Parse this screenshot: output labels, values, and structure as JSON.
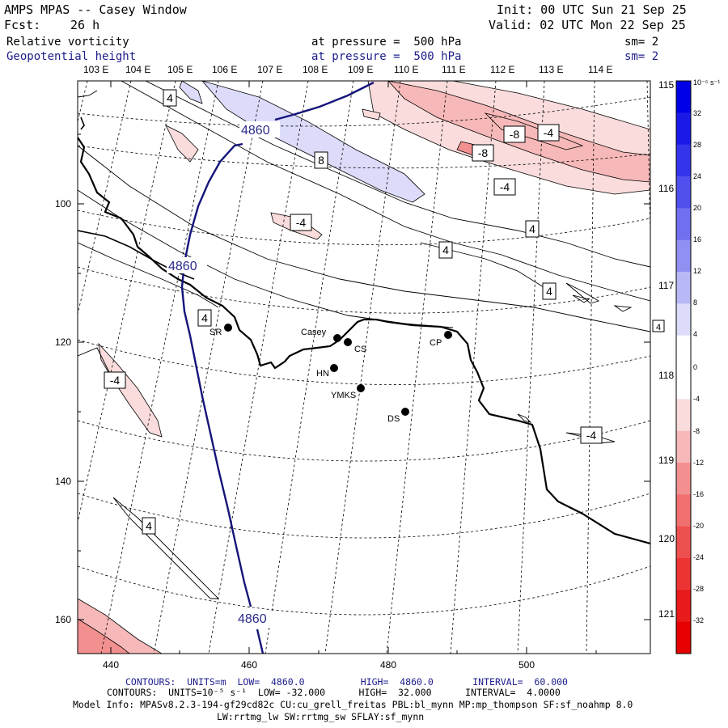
{
  "header": {
    "title": "AMPS MPAS -- Casey Window",
    "init": "Init: 00 UTC Sun 21 Sep 25",
    "fcst_label": "Fcst:",
    "fcst_value": "26 h",
    "valid": "Valid: 02 UTC Mon 22 Sep 25",
    "field1": "Relative vorticity",
    "field1_level": "at pressure =  500 hPa",
    "field1_sm": "sm= 2",
    "field2": "Geopotential height",
    "field2_level": "at pressure =  500 hPa",
    "field2_sm": "sm= 2"
  },
  "axes": {
    "top_lon": [
      "103 E",
      "104 E",
      "105 E",
      "106 E",
      "107 E",
      "108 E",
      "109 E",
      "110 E",
      "111 E",
      "112 E",
      "113 E",
      "114 E"
    ],
    "right_lon": [
      "115 E",
      "116 E",
      "117 E",
      "118 E",
      "119 E",
      "120 E",
      "121 E"
    ],
    "left_ticks": [
      "100",
      "120",
      "140",
      "160"
    ],
    "bottom_ticks": [
      "440",
      "460",
      "480",
      "500"
    ]
  },
  "colorbar": {
    "units": "10⁻⁵ s⁻¹",
    "labels": [
      "32",
      "28",
      "24",
      "20",
      "16",
      "12",
      "8",
      "4",
      "0",
      "-4",
      "-8",
      "-12",
      "-16",
      "-20",
      "-24",
      "-28",
      "-32"
    ],
    "colors": [
      "#0000e6",
      "#1a1ae8",
      "#3434ec",
      "#5050ee",
      "#7070f0",
      "#9090f2",
      "#b8b8f6",
      "#dcdcfa",
      "#ffffff",
      "#ffffff",
      "#fadcdc",
      "#f6b8b8",
      "#f29090",
      "#f07070",
      "#ee5050",
      "#ec3434",
      "#e81a1a",
      "#e60000"
    ]
  },
  "stations": [
    {
      "id": "SR",
      "label": "SR"
    },
    {
      "id": "Casey",
      "label": "Casey"
    },
    {
      "id": "CS",
      "label": "CS"
    },
    {
      "id": "CP",
      "label": "CP"
    },
    {
      "id": "HN",
      "label": "HN"
    },
    {
      "id": "YMKS",
      "label": "YMKS"
    },
    {
      "id": "DS",
      "label": "DS"
    }
  ],
  "contour_labels": {
    "height": [
      "4860",
      "4860",
      "4860"
    ],
    "vorticity": [
      "4",
      "8",
      "-4",
      "-4",
      "-8",
      "-4",
      "-8",
      "-4",
      "4",
      "4",
      "4",
      "4",
      "-4",
      "4",
      "4"
    ]
  },
  "footer": {
    "line1": "CONTOURS:  UNITS=m  LOW=  4860.0          HIGH=  4860.0       INTERVAL=  60.000",
    "line2": "CONTOURS:  UNITS=10⁻⁵ s⁻¹  LOW= -32.000      HIGH=  32.000      INTERVAL=  4.0000",
    "line3": "Model Info: MPASv8.2.3-194-gf29cd82c CU:cu_grell_freitas PBL:bl_mynn MP:mp_thompson SF:sf_noahmp 8.0",
    "line4": "LW:rrtmg_lw SW:rrtmg_sw SFLAY:sf_mynn"
  }
}
